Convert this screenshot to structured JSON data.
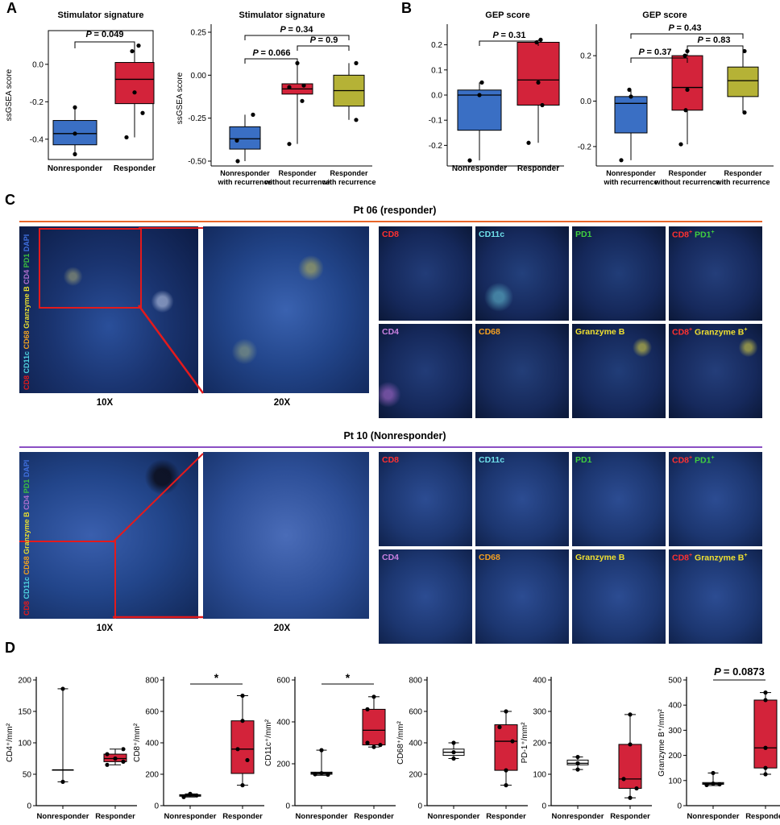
{
  "panels": {
    "A": "A",
    "B": "B",
    "C": "C",
    "D": "D"
  },
  "colors": {
    "blue": "#3a6fc4",
    "red": "#d3233a",
    "olive": "#b5b236",
    "orange": "#e8662a",
    "purple": "#8a4fc4"
  },
  "panelA": {
    "left": {
      "title": "Stimulator signature",
      "ylabel": "ssGSEA score",
      "yticks": [
        "0.0",
        "-0.2",
        "-0.4"
      ],
      "categories": [
        "Nonresponder",
        "Responder"
      ],
      "pvalue": "= 0.049"
    },
    "right": {
      "title": "Stimulator signature",
      "ylabel": "ssGSEA score",
      "yticks": [
        "0.25",
        "0.00",
        "-0.25",
        "-0.50"
      ],
      "categories": [
        [
          "Nonresponder",
          "with recurrence"
        ],
        [
          "Responder",
          "without recurrence"
        ],
        [
          "Responder",
          "with recurrence"
        ]
      ],
      "p1": "= 0.34",
      "p2": "= 0.066",
      "p3": "= 0.9"
    }
  },
  "panelB": {
    "left": {
      "title": "GEP score",
      "yticks": [
        "0.2",
        "0.1",
        "0.0",
        "-0.1",
        "-0.2"
      ],
      "categories": [
        "Nonresponder",
        "Responder"
      ],
      "pvalue": "= 0.31"
    },
    "right": {
      "title": "GEP score",
      "yticks": [
        "0.2",
        "0.0",
        "-0.2"
      ],
      "categories": [
        [
          "Nonresponder",
          "with recurrence"
        ],
        [
          "Responder",
          "without recurrence"
        ],
        [
          "Responder",
          "with recurrence"
        ]
      ],
      "p1": "= 0.43",
      "p2": "= 0.37",
      "p3": "= 0.83"
    }
  },
  "panelC": {
    "pt06": {
      "title": "Pt 06 (responder)",
      "mag10": "10X",
      "mag20": "20X",
      "sidelabel": [
        "CD8",
        "CD11c",
        "CD68",
        "Granzyme B",
        "CD4",
        "PD1",
        "DAPI"
      ],
      "tiles": [
        "CD8",
        "CD11c",
        "PD1",
        "CD8",
        "CD4",
        "CD68",
        "Granzyme B",
        "CD8"
      ],
      "combo1": "PD1",
      "combo2": "Granzyme B"
    },
    "pt10": {
      "title": "Pt 10 (Nonresponder)",
      "mag10": "10X",
      "mag20": "20X",
      "tiles": [
        "CD8",
        "CD11c",
        "PD1",
        "CD8",
        "CD4",
        "CD68",
        "Granzyme B",
        "CD8"
      ],
      "combo1": "PD1",
      "combo2": "Granzyme B"
    }
  },
  "panelD": {
    "categories": [
      "Nonresponder",
      "Responder"
    ],
    "star": "*",
    "pvalue": "= 0.0873",
    "plots": [
      {
        "ylabel": "CD4⁺/mm²",
        "yticks": [
          "200",
          "150",
          "100",
          "50",
          "0"
        ]
      },
      {
        "ylabel": "CD8⁺/mm²",
        "yticks": [
          "800",
          "600",
          "400",
          "200",
          "0"
        ]
      },
      {
        "ylabel": "CD11c⁺/mm²",
        "yticks": [
          "600",
          "400",
          "200",
          "0"
        ]
      },
      {
        "ylabel": "CD68⁺/mm²",
        "yticks": [
          "800",
          "600",
          "400",
          "200",
          "0"
        ]
      },
      {
        "ylabel": "PD-1⁺/mm²",
        "yticks": [
          "400",
          "300",
          "200",
          "100",
          "0"
        ]
      },
      {
        "ylabel": "Granzyme B⁺/mm²",
        "yticks": [
          "500",
          "400",
          "300",
          "200",
          "100",
          "0"
        ]
      }
    ]
  },
  "chart_data": [
    {
      "type": "box",
      "title": "Stimulator signature",
      "ylabel": "ssGSEA score",
      "categories": [
        "Nonresponder",
        "Responder"
      ],
      "series": [
        {
          "values": {
            "Nonresponder": [
              -0.48,
              -0.43,
              -0.37,
              -0.3,
              -0.23
            ],
            "Responder": [
              -0.39,
              -0.21,
              -0.08,
              0.01,
              0.1
            ]
          }
        }
      ]
    },
    {
      "type": "box",
      "title": "Stimulator signature",
      "ylabel": "ssGSEA score",
      "categories": [
        "Nonresponder with recurrence",
        "Responder without recurrence",
        "Responder with recurrence"
      ],
      "series": [
        {
          "values": {
            "Nonresponder with recurrence": [
              -0.5,
              -0.43,
              -0.37,
              -0.3,
              -0.23
            ],
            "Responder without recurrence": [
              -0.4,
              -0.11,
              -0.08,
              -0.05,
              0.07
            ],
            "Responder with recurrence": [
              -0.26,
              -0.18,
              -0.09,
              0.0,
              0.07
            ]
          }
        }
      ]
    },
    {
      "type": "box",
      "title": "GEP score",
      "categories": [
        "Nonresponder",
        "Responder"
      ],
      "series": [
        {
          "values": {
            "Nonresponder": [
              -0.26,
              -0.14,
              0.0,
              0.02,
              0.05
            ],
            "Responder": [
              -0.19,
              -0.04,
              0.06,
              0.21,
              0.22
            ]
          }
        }
      ]
    },
    {
      "type": "box",
      "title": "GEP score",
      "categories": [
        "Nonresponder with recurrence",
        "Responder without recurrence",
        "Responder with recurrence"
      ],
      "series": [
        {
          "values": {
            "Nonresponder with recurrence": [
              -0.26,
              -0.14,
              -0.01,
              0.02,
              0.05
            ],
            "Responder without recurrence": [
              -0.19,
              -0.04,
              0.06,
              0.2,
              0.22
            ],
            "Responder with recurrence": [
              -0.05,
              0.02,
              0.09,
              0.15,
              0.22
            ]
          }
        }
      ]
    },
    {
      "type": "box",
      "ylabel": "CD4⁺/mm²",
      "categories": [
        "Nonresponder",
        "Responder"
      ],
      "series": [
        {
          "values": {
            "Nonresponder": [
              38,
              57,
              57,
              57,
              186
            ],
            "Responder": [
              65,
              70,
              75,
              82,
              90
            ]
          }
        }
      ]
    },
    {
      "type": "box",
      "ylabel": "CD8⁺/mm²",
      "categories": [
        "Nonresponder",
        "Responder"
      ],
      "series": [
        {
          "values": {
            "Nonresponder": [
              55,
              60,
              65,
              70,
              75
            ],
            "Responder": [
              130,
              205,
              360,
              540,
              700
            ]
          }
        }
      ]
    },
    {
      "type": "box",
      "ylabel": "CD11c⁺/mm²",
      "categories": [
        "Nonresponder",
        "Responder"
      ],
      "series": [
        {
          "values": {
            "Nonresponder": [
              145,
              150,
              155,
              160,
              265
            ],
            "Responder": [
              280,
              290,
              360,
              460,
              520
            ]
          }
        }
      ]
    },
    {
      "type": "box",
      "ylabel": "CD68⁺/mm²",
      "categories": [
        "Nonresponder",
        "Responder"
      ],
      "series": [
        {
          "values": {
            "Nonresponder": [
              300,
              320,
              340,
              360,
              400
            ],
            "Responder": [
              130,
              225,
              410,
              515,
              600
            ]
          }
        }
      ]
    },
    {
      "type": "box",
      "ylabel": "PD-1⁺/mm²",
      "categories": [
        "Nonresponder",
        "Responder"
      ],
      "series": [
        {
          "values": {
            "Nonresponder": [
              115,
              130,
              135,
              145,
              155
            ],
            "Responder": [
              25,
              55,
              85,
              195,
              290
            ]
          }
        }
      ]
    },
    {
      "type": "box",
      "ylabel": "Granzyme B⁺/mm²",
      "categories": [
        "Nonresponder",
        "Responder"
      ],
      "series": [
        {
          "values": {
            "Nonresponder": [
              80,
              85,
              88,
              92,
              130
            ],
            "Responder": [
              125,
              150,
              230,
              420,
              450
            ]
          }
        }
      ]
    }
  ]
}
